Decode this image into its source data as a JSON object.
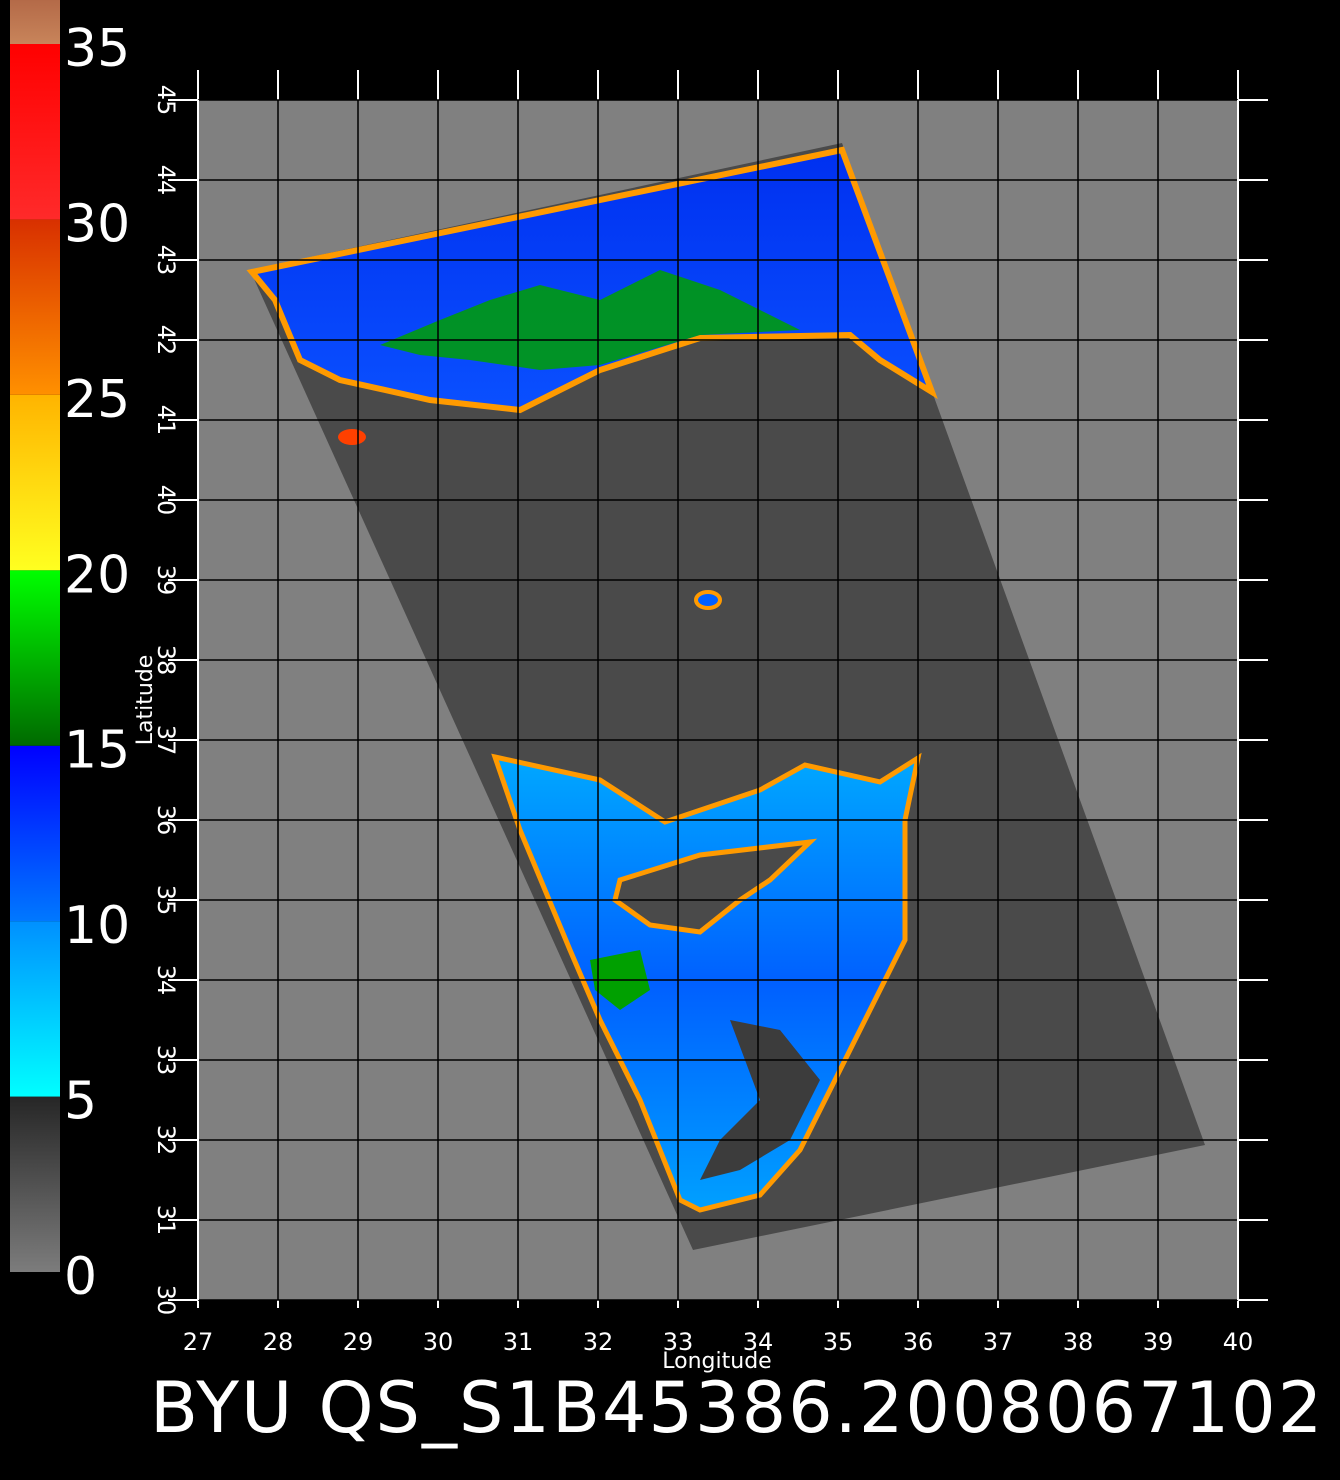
{
  "chart_data": {
    "type": "map",
    "title": "BYU QS_S1B45386.2008067102",
    "x_label": "Longitude",
    "y_label": "Latitude",
    "xlim": [
      27,
      40
    ],
    "ylim": [
      30,
      45
    ],
    "xticks": [
      27,
      28,
      29,
      30,
      31,
      32,
      33,
      34,
      35,
      36,
      37,
      38,
      39,
      40
    ],
    "yticks": [
      30,
      31,
      32,
      33,
      34,
      35,
      36,
      37,
      38,
      39,
      40,
      41,
      42,
      43,
      44,
      45
    ],
    "grid": true,
    "colorbar": {
      "ticks": [
        0,
        5,
        10,
        15,
        20,
        25,
        30,
        35
      ],
      "colors": [
        [
          "#7c7c7c",
          "#262626"
        ],
        [
          "#00ffff",
          "#0090ff"
        ],
        [
          "#0078ff",
          "#0000ff"
        ],
        [
          "#006a00",
          "#00ff00"
        ],
        [
          "#ffff20",
          "#ffb400"
        ],
        [
          "#ff9000",
          "#d83000"
        ],
        [
          "#ff2a2a",
          "#ff0000"
        ],
        [
          "#c8845a",
          "#b46a48"
        ]
      ]
    }
  }
}
